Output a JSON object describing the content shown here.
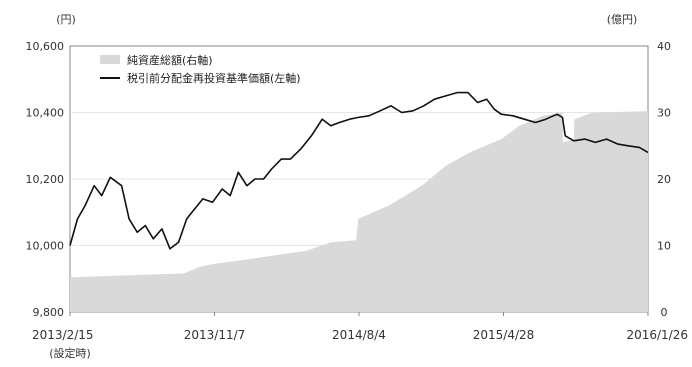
{
  "chart_data": {
    "type": "line+area",
    "left_axis": {
      "unit_label": "(円)",
      "ylim": [
        9800,
        10600
      ],
      "ticks": [
        9800,
        10000,
        10200,
        10400,
        10600
      ],
      "tick_labels": [
        "9,800",
        "10,000",
        "10,200",
        "10,400",
        "10,600"
      ]
    },
    "right_axis": {
      "unit_label": "(億円)",
      "ylim": [
        0,
        40
      ],
      "ticks": [
        0,
        10,
        20,
        30,
        40
      ],
      "tick_labels": [
        "0",
        "10",
        "20",
        "30",
        "40"
      ]
    },
    "x_tick_labels": [
      "2013/2/15",
      "2013/11/7",
      "2014/8/4",
      "2015/4/28",
      "2016/1/26"
    ],
    "x_tick_sublabel": "(設定時)",
    "legend_position": "top-left",
    "series": [
      {
        "name": "純資産総額(右軸)",
        "kind": "area",
        "axis": "right",
        "color": "#d9d9d9",
        "x": [
          "2013-02-15",
          "2013-06-01",
          "2013-09-15",
          "2013-10-15",
          "2013-11-07",
          "2014-01-01",
          "2014-03-01",
          "2014-05-01",
          "2014-06-15",
          "2014-08-01",
          "2014-08-04",
          "2014-08-05",
          "2014-10-01",
          "2014-12-01",
          "2015-01-15",
          "2015-03-01",
          "2015-04-28",
          "2015-06-01",
          "2015-07-15",
          "2015-08-20",
          "2015-08-21",
          "2015-09-10",
          "2015-09-11",
          "2015-10-15",
          "2016-01-26"
        ],
        "values": [
          5.2,
          5.5,
          5.8,
          6.8,
          7.2,
          7.8,
          8.5,
          9.2,
          10.5,
          10.8,
          13.0,
          14.0,
          16.0,
          19.0,
          22.0,
          24.0,
          26.0,
          28.0,
          29.5,
          30.0,
          25.5,
          26.0,
          29.0,
          30.0,
          30.2
        ]
      },
      {
        "name": "税引前分配金再投資基準価額(左軸)",
        "kind": "line",
        "axis": "left",
        "color": "#111111",
        "x": [
          "2013-02-15",
          "2013-03-01",
          "2013-03-15",
          "2013-04-01",
          "2013-04-15",
          "2013-05-01",
          "2013-05-22",
          "2013-06-05",
          "2013-06-20",
          "2013-07-05",
          "2013-07-20",
          "2013-08-05",
          "2013-08-20",
          "2013-09-05",
          "2013-09-20",
          "2013-10-05",
          "2013-10-20",
          "2013-11-07",
          "2013-11-25",
          "2013-12-10",
          "2013-12-25",
          "2014-01-10",
          "2014-01-25",
          "2014-02-10",
          "2014-02-25",
          "2014-03-15",
          "2014-04-01",
          "2014-04-20",
          "2014-05-10",
          "2014-05-30",
          "2014-06-15",
          "2014-07-01",
          "2014-07-20",
          "2014-08-04",
          "2014-08-25",
          "2014-09-15",
          "2014-10-05",
          "2014-10-25",
          "2014-11-15",
          "2014-12-05",
          "2014-12-25",
          "2015-01-15",
          "2015-02-05",
          "2015-02-25",
          "2015-03-15",
          "2015-04-01",
          "2015-04-15",
          "2015-04-28",
          "2015-05-20",
          "2015-06-10",
          "2015-07-01",
          "2015-07-20",
          "2015-08-10",
          "2015-08-20",
          "2015-08-25",
          "2015-09-10",
          "2015-10-01",
          "2015-10-20",
          "2015-11-10",
          "2015-12-01",
          "2015-12-20",
          "2016-01-10",
          "2016-01-26"
        ],
        "values": [
          10000,
          10080,
          10120,
          10180,
          10150,
          10205,
          10180,
          10080,
          10040,
          10060,
          10020,
          10050,
          9990,
          10010,
          10080,
          10110,
          10140,
          10130,
          10170,
          10150,
          10220,
          10180,
          10200,
          10200,
          10230,
          10260,
          10260,
          10290,
          10330,
          10380,
          10360,
          10370,
          10380,
          10385,
          10390,
          10405,
          10420,
          10400,
          10405,
          10420,
          10440,
          10450,
          10460,
          10460,
          10430,
          10440,
          10410,
          10395,
          10390,
          10380,
          10370,
          10380,
          10395,
          10385,
          10330,
          10315,
          10320,
          10310,
          10320,
          10305,
          10300,
          10295,
          10280
        ]
      }
    ]
  }
}
